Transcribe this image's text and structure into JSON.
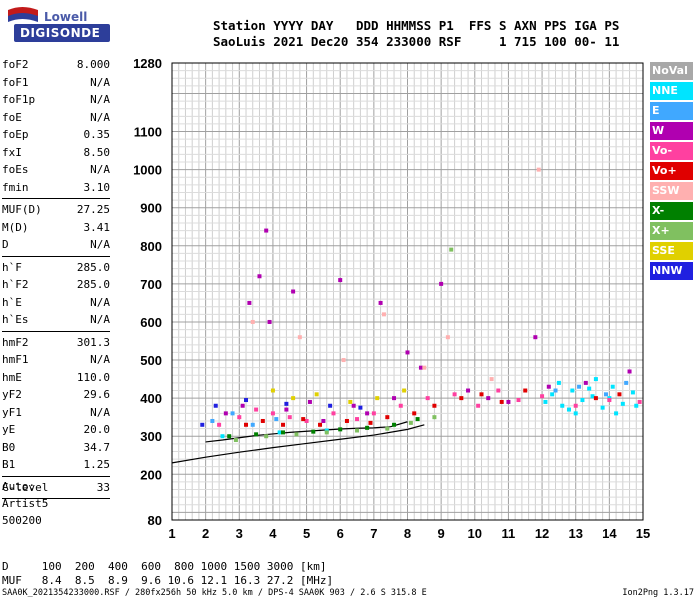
{
  "logo": {
    "top": "Lowell",
    "bottom": "DIGISONDE"
  },
  "header": {
    "line1": "Station YYYY DAY   DDD HHMMSS P1  FFS S AXN PPS IGA PS",
    "line2": "SaoLuis 2021 Dec20 354 233000 RSF     1 715 100 00- 11"
  },
  "params_group1": [
    {
      "label": "foF2",
      "value": "8.000"
    },
    {
      "label": "foF1",
      "value": "N/A"
    },
    {
      "label": "foF1p",
      "value": "N/A"
    },
    {
      "label": "foE",
      "value": "N/A"
    },
    {
      "label": "foEp",
      "value": "0.35"
    },
    {
      "label": "fxI",
      "value": "8.50"
    },
    {
      "label": "foEs",
      "value": "N/A"
    },
    {
      "label": "fmin",
      "value": "3.10"
    }
  ],
  "params_group2": [
    {
      "label": "MUF(D)",
      "value": "27.25"
    },
    {
      "label": "M(D)",
      "value": "3.41"
    },
    {
      "label": "D",
      "value": "N/A"
    }
  ],
  "params_group3": [
    {
      "label": "h`F",
      "value": "285.0"
    },
    {
      "label": "h`F2",
      "value": "285.0"
    },
    {
      "label": "h`E",
      "value": "N/A"
    },
    {
      "label": "h`Es",
      "value": "N/A"
    }
  ],
  "params_group4": [
    {
      "label": "hmF2",
      "value": "301.3"
    },
    {
      "label": "hmF1",
      "value": "N/A"
    },
    {
      "label": "hmE",
      "value": "110.0"
    },
    {
      "label": "yF2",
      "value": "29.6"
    },
    {
      "label": "yF1",
      "value": "N/A"
    },
    {
      "label": "yE",
      "value": "20.0"
    },
    {
      "label": "B0",
      "value": "34.7"
    },
    {
      "label": "B1",
      "value": "1.25"
    }
  ],
  "params_group5": [
    {
      "label": "C-level",
      "value": "33"
    }
  ],
  "auto": {
    "line1": "Auto:",
    "line2": "Artist5",
    "line3": "500200"
  },
  "legend": [
    {
      "label": "NoVal",
      "color": "#a8a8a8",
      "text_color": "#ffffff"
    },
    {
      "label": "NNE",
      "color": "#00e4ff",
      "text_color": "#ffffff"
    },
    {
      "label": "E",
      "color": "#40a8ff",
      "text_color": "#ffffff"
    },
    {
      "label": "W",
      "color": "#b000b0",
      "text_color": "#ffffff"
    },
    {
      "label": "Vo-",
      "color": "#ff40a0",
      "text_color": "#ffffff"
    },
    {
      "label": "Vo+",
      "color": "#e00000",
      "text_color": "#ffffff"
    },
    {
      "label": "SSW",
      "color": "#ffb0b0",
      "text_color": "#ffffff"
    },
    {
      "label": "X-",
      "color": "#008000",
      "text_color": "#ffffff"
    },
    {
      "label": "X+",
      "color": "#80c060",
      "text_color": "#ffffff"
    },
    {
      "label": "SSE",
      "color": "#e0d000",
      "text_color": "#ffffff"
    },
    {
      "label": "NNW",
      "color": "#2020e0",
      "text_color": "#ffffff"
    }
  ],
  "bottom": {
    "d_line": "D     100  200  400  600  800 1000 1500 3000 [km]",
    "muf_line": "MUF   8.4  8.5  8.9  9.6 10.6 12.1 16.3 27.2 [MHz]"
  },
  "footer": {
    "left": "SAA0K_2021354233000.RSF / 280fx256h 50 kHz 5.0 km / DPS-4 SAA0K 903 / 2.6 S 315.8 E",
    "right": "Ion2Png 1.3.17"
  },
  "chart_data": {
    "type": "scatter",
    "x_ticks": [
      1,
      2,
      3,
      4,
      5,
      6,
      7,
      8,
      9,
      10,
      11,
      12,
      13,
      14,
      15
    ],
    "y_ticks": [
      80,
      200,
      300,
      400,
      500,
      600,
      700,
      800,
      900,
      1000,
      1100,
      1280
    ],
    "xlim": [
      1,
      15
    ],
    "ylim": [
      80,
      1280
    ],
    "grid": true,
    "legend_position": "right",
    "series": [
      {
        "name": "NNE",
        "color": "#00e4ff",
        "points": [
          [
            12.1,
            390
          ],
          [
            12.3,
            410
          ],
          [
            12.6,
            380
          ],
          [
            12.9,
            420
          ],
          [
            13.2,
            395
          ],
          [
            13.5,
            405
          ],
          [
            13.8,
            375
          ],
          [
            14.1,
            430
          ],
          [
            14.4,
            385
          ],
          [
            14.7,
            415
          ],
          [
            12.5,
            440
          ],
          [
            13.0,
            360
          ],
          [
            13.6,
            450
          ],
          [
            14.2,
            360
          ],
          [
            14.8,
            380
          ],
          [
            12.8,
            370
          ],
          [
            13.4,
            425
          ],
          [
            14.0,
            400
          ],
          [
            2.5,
            300
          ],
          [
            4.2,
            310
          ],
          [
            5.6,
            315
          ]
        ]
      },
      {
        "name": "E",
        "color": "#40a8ff",
        "points": [
          [
            2.2,
            340
          ],
          [
            2.8,
            360
          ],
          [
            3.4,
            330
          ],
          [
            4.1,
            345
          ],
          [
            12.4,
            420
          ],
          [
            13.1,
            430
          ],
          [
            13.9,
            410
          ],
          [
            14.5,
            440
          ]
        ]
      },
      {
        "name": "W",
        "color": "#b000b0",
        "points": [
          [
            2.6,
            360
          ],
          [
            3.1,
            380
          ],
          [
            3.3,
            650
          ],
          [
            3.6,
            720
          ],
          [
            3.9,
            600
          ],
          [
            4.4,
            370
          ],
          [
            4.6,
            680
          ],
          [
            5.1,
            390
          ],
          [
            5.5,
            340
          ],
          [
            6.0,
            710
          ],
          [
            6.4,
            380
          ],
          [
            6.8,
            360
          ],
          [
            7.2,
            650
          ],
          [
            7.6,
            400
          ],
          [
            8.0,
            520
          ],
          [
            8.4,
            480
          ],
          [
            9.0,
            700
          ],
          [
            9.8,
            420
          ],
          [
            10.4,
            400
          ],
          [
            11.0,
            390
          ],
          [
            11.8,
            560
          ],
          [
            12.2,
            430
          ],
          [
            13.3,
            440
          ],
          [
            14.6,
            470
          ],
          [
            3.8,
            840
          ]
        ]
      },
      {
        "name": "Vo-",
        "color": "#ff40a0",
        "points": [
          [
            2.4,
            330
          ],
          [
            3.0,
            350
          ],
          [
            3.5,
            370
          ],
          [
            4.0,
            360
          ],
          [
            4.5,
            350
          ],
          [
            5.0,
            340
          ],
          [
            5.8,
            360
          ],
          [
            6.5,
            345
          ],
          [
            7.0,
            360
          ],
          [
            7.8,
            380
          ],
          [
            8.6,
            400
          ],
          [
            9.4,
            410
          ],
          [
            10.1,
            380
          ],
          [
            10.7,
            420
          ],
          [
            11.3,
            395
          ],
          [
            12.0,
            405
          ],
          [
            13.0,
            380
          ],
          [
            14.0,
            395
          ],
          [
            14.9,
            390
          ]
        ]
      },
      {
        "name": "Vo+",
        "color": "#e00000",
        "points": [
          [
            3.2,
            330
          ],
          [
            3.7,
            340
          ],
          [
            4.3,
            330
          ],
          [
            4.9,
            345
          ],
          [
            5.4,
            330
          ],
          [
            6.2,
            340
          ],
          [
            6.9,
            335
          ],
          [
            7.4,
            350
          ],
          [
            8.2,
            360
          ],
          [
            8.8,
            380
          ],
          [
            9.6,
            400
          ],
          [
            10.2,
            410
          ],
          [
            10.8,
            390
          ],
          [
            11.5,
            420
          ],
          [
            13.6,
            400
          ],
          [
            14.3,
            410
          ]
        ]
      },
      {
        "name": "SSW",
        "color": "#ffb0b0",
        "points": [
          [
            3.4,
            600
          ],
          [
            4.8,
            560
          ],
          [
            6.1,
            500
          ],
          [
            7.3,
            620
          ],
          [
            8.5,
            480
          ],
          [
            9.2,
            560
          ],
          [
            10.5,
            450
          ],
          [
            11.9,
            1000
          ]
        ]
      },
      {
        "name": "X-",
        "color": "#008000",
        "points": [
          [
            2.7,
            300
          ],
          [
            3.5,
            305
          ],
          [
            4.3,
            310
          ],
          [
            5.2,
            312
          ],
          [
            6.0,
            318
          ],
          [
            6.8,
            322
          ],
          [
            7.6,
            330
          ],
          [
            8.3,
            345
          ]
        ]
      },
      {
        "name": "X+",
        "color": "#80c060",
        "points": [
          [
            2.9,
            290
          ],
          [
            3.8,
            300
          ],
          [
            4.7,
            305
          ],
          [
            5.6,
            310
          ],
          [
            6.5,
            315
          ],
          [
            7.4,
            320
          ],
          [
            8.1,
            335
          ],
          [
            8.8,
            350
          ],
          [
            9.3,
            790
          ]
        ]
      },
      {
        "name": "SSE",
        "color": "#e0d000",
        "points": [
          [
            4.0,
            420
          ],
          [
            4.6,
            400
          ],
          [
            5.3,
            410
          ],
          [
            6.3,
            390
          ],
          [
            7.1,
            400
          ],
          [
            7.9,
            420
          ]
        ]
      },
      {
        "name": "NNW",
        "color": "#2020e0",
        "points": [
          [
            1.9,
            330
          ],
          [
            2.3,
            380
          ],
          [
            3.2,
            395
          ],
          [
            4.4,
            385
          ],
          [
            5.7,
            380
          ],
          [
            6.6,
            375
          ]
        ]
      }
    ],
    "lines": [
      {
        "points": [
          [
            1.0,
            230
          ],
          [
            2.0,
            245
          ],
          [
            3.0,
            258
          ],
          [
            4.0,
            270
          ],
          [
            5.0,
            281
          ],
          [
            6.0,
            292
          ],
          [
            7.0,
            303
          ],
          [
            8.0,
            318
          ],
          [
            8.5,
            330
          ]
        ]
      },
      {
        "points": [
          [
            2.0,
            285
          ],
          [
            2.5,
            290
          ],
          [
            3.0,
            296
          ],
          [
            3.5,
            302
          ],
          [
            4.0,
            306
          ],
          [
            4.5,
            310
          ],
          [
            5.0,
            313
          ],
          [
            5.5,
            316
          ],
          [
            6.0,
            319
          ],
          [
            6.5,
            321
          ],
          [
            7.0,
            322
          ],
          [
            7.5,
            325
          ],
          [
            8.0,
            338
          ]
        ]
      }
    ]
  }
}
